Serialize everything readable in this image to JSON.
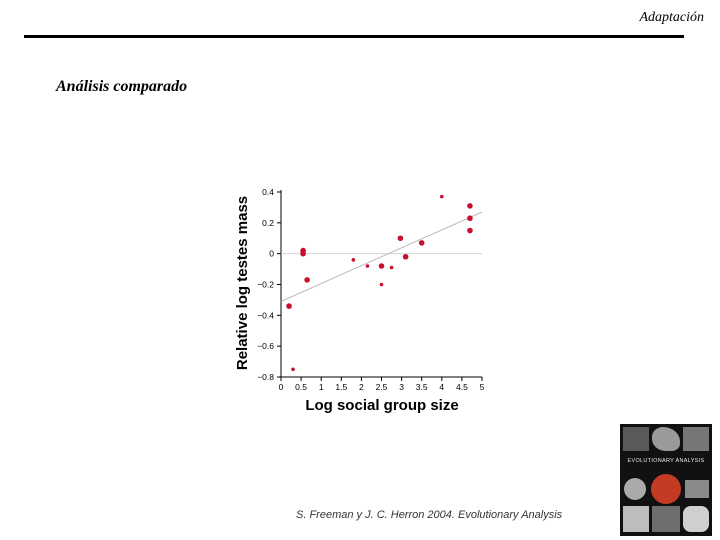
{
  "header": {
    "section": "Adaptación"
  },
  "slide": {
    "title": "Análisis comparado"
  },
  "citation": "S. Freeman y J. C. Herron 2004. Evolutionary Analysis",
  "book_cover": {
    "title": "EVOLUTIONARY ANALYSIS",
    "accent": "#c23b22"
  },
  "colors": {
    "points": "#c8102e",
    "trendline": "#b5b5b5",
    "zero_line": "#cfcfcf",
    "axis": "#000000"
  },
  "chart_data": {
    "type": "scatter",
    "xlabel": "Log social group size",
    "ylabel": "Relative log testes mass",
    "xlim": [
      0,
      5
    ],
    "ylim": [
      -0.8,
      0.4
    ],
    "x_ticks": [
      0,
      0.5,
      1,
      1.5,
      2,
      2.5,
      3,
      3.5,
      4,
      4.5,
      5
    ],
    "x_tick_labels": [
      "0",
      "0.5",
      "1",
      "1.5",
      "2",
      "2.5",
      "3",
      "3.5",
      "4",
      "4.5",
      "5"
    ],
    "y_ticks": [
      0.4,
      0.2,
      0,
      -0.2,
      -0.4,
      -0.6,
      -0.8
    ],
    "y_tick_labels": [
      "0.4",
      "0.2",
      "0",
      "−0.2",
      "−0.4",
      "−0.6",
      "−0.8"
    ],
    "reference_line_y": 0,
    "trendline": {
      "x": [
        0,
        5
      ],
      "y": [
        -0.31,
        0.27
      ]
    },
    "points": [
      {
        "x": 0.2,
        "y": -0.34,
        "size": "large"
      },
      {
        "x": 0.3,
        "y": -0.75,
        "size": "small"
      },
      {
        "x": 0.55,
        "y": 0.02,
        "size": "large"
      },
      {
        "x": 0.55,
        "y": 0.0,
        "size": "large"
      },
      {
        "x": 0.65,
        "y": -0.17,
        "size": "large"
      },
      {
        "x": 1.8,
        "y": -0.04,
        "size": "small"
      },
      {
        "x": 2.15,
        "y": -0.08,
        "size": "small"
      },
      {
        "x": 2.5,
        "y": -0.08,
        "size": "large"
      },
      {
        "x": 2.5,
        "y": -0.2,
        "size": "small"
      },
      {
        "x": 2.75,
        "y": -0.09,
        "size": "small"
      },
      {
        "x": 2.97,
        "y": 0.1,
        "size": "large"
      },
      {
        "x": 3.1,
        "y": -0.02,
        "size": "large"
      },
      {
        "x": 3.5,
        "y": 0.07,
        "size": "large"
      },
      {
        "x": 4.0,
        "y": 0.37,
        "size": "small"
      },
      {
        "x": 4.7,
        "y": 0.31,
        "size": "large"
      },
      {
        "x": 4.7,
        "y": 0.23,
        "size": "large"
      },
      {
        "x": 4.7,
        "y": 0.15,
        "size": "large"
      }
    ]
  }
}
